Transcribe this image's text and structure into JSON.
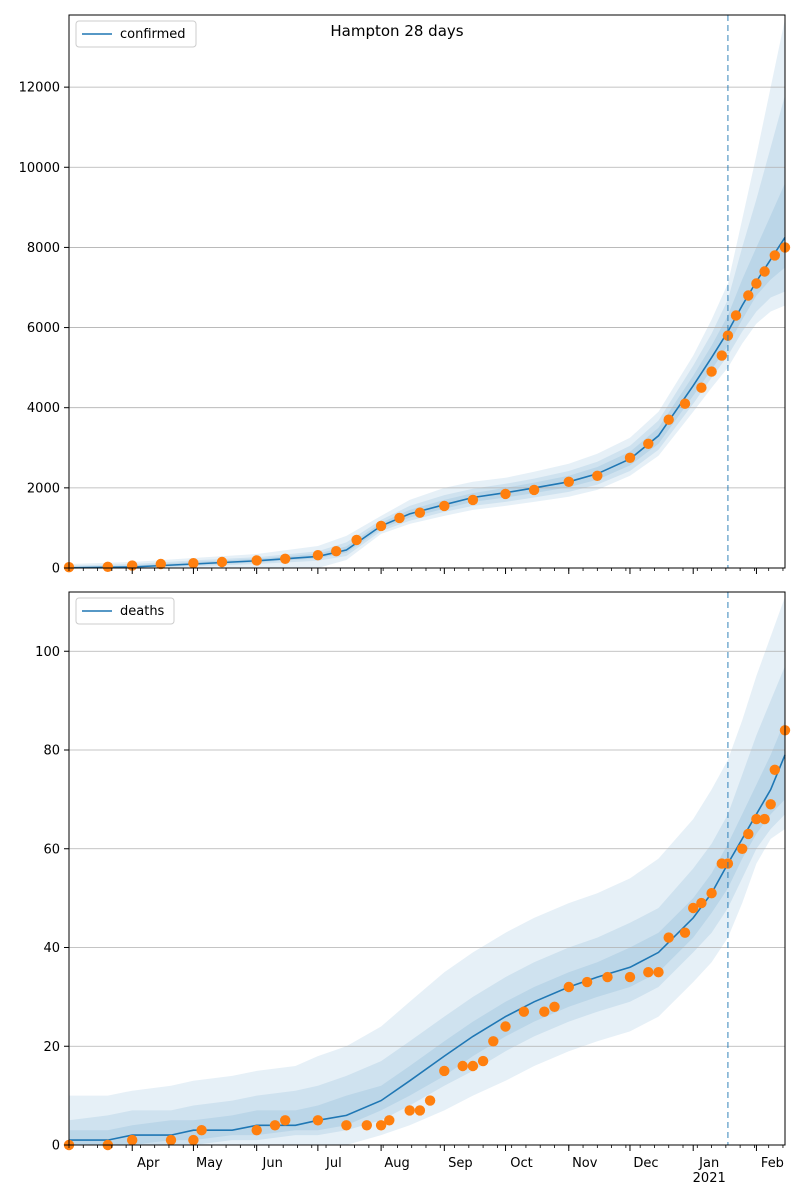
{
  "title": "Hampton 28 days",
  "colors": {
    "series": "#1f77b4",
    "observed": "#ff7f0e",
    "band": "#1f77b4",
    "grid": "#b0b0b0",
    "vline": "#1f77b4"
  },
  "x_axis": {
    "start": "2020-03-01",
    "end": "2021-02-15",
    "month_ticks": [
      {
        "date": "2020-04-01",
        "label": "Apr"
      },
      {
        "date": "2020-05-01",
        "label": "May"
      },
      {
        "date": "2020-06-01",
        "label": "Jun"
      },
      {
        "date": "2020-07-01",
        "label": "Jul"
      },
      {
        "date": "2020-08-01",
        "label": "Aug"
      },
      {
        "date": "2020-09-01",
        "label": "Sep"
      },
      {
        "date": "2020-10-01",
        "label": "Oct"
      },
      {
        "date": "2020-11-01",
        "label": "Nov"
      },
      {
        "date": "2020-12-01",
        "label": "Dec"
      },
      {
        "date": "2021-01-01",
        "label": "Jan"
      },
      {
        "date": "2021-02-01",
        "label": "Feb"
      }
    ],
    "year_label": {
      "date": "2021-01-01",
      "label": "2021"
    },
    "forecast_start": "2021-01-18"
  },
  "chart_data": [
    {
      "type": "line",
      "legend": "confirmed",
      "legend_position": "upper-left",
      "ylim": [
        0,
        13800
      ],
      "yticks": [
        0,
        2000,
        4000,
        6000,
        8000,
        10000,
        12000
      ],
      "grid": "y",
      "model": {
        "x": [
          "2020-03-01",
          "2020-04-01",
          "2020-05-01",
          "2020-06-01",
          "2020-07-01",
          "2020-07-15",
          "2020-08-01",
          "2020-08-15",
          "2020-09-01",
          "2020-09-15",
          "2020-10-01",
          "2020-10-15",
          "2020-11-01",
          "2020-11-15",
          "2020-12-01",
          "2020-12-15",
          "2021-01-01",
          "2021-01-10",
          "2021-01-18",
          "2021-01-25",
          "2021-02-01",
          "2021-02-08",
          "2021-02-15"
        ],
        "y": [
          5,
          25,
          100,
          180,
          290,
          450,
          1050,
          1350,
          1580,
          1760,
          1880,
          2000,
          2150,
          2350,
          2720,
          3300,
          4550,
          5250,
          5900,
          6550,
          7150,
          7700,
          8250
        ]
      },
      "bands": [
        {
          "lower": [
            0,
            0,
            0,
            0,
            0,
            200,
            850,
            1100,
            1300,
            1450,
            1550,
            1650,
            1780,
            1950,
            2300,
            2800,
            3900,
            4500,
            5000,
            5600,
            6100,
            6400,
            6550
          ],
          "upper": [
            100,
            150,
            250,
            350,
            550,
            800,
            1300,
            1700,
            2000,
            2150,
            2250,
            2400,
            2600,
            2850,
            3250,
            3900,
            5300,
            6200,
            7100,
            8700,
            10300,
            12000,
            13700
          ]
        },
        {
          "lower": [
            0,
            0,
            40,
            100,
            180,
            300,
            920,
            1180,
            1400,
            1550,
            1650,
            1760,
            1900,
            2080,
            2420,
            2950,
            4100,
            4750,
            5300,
            5900,
            6400,
            6750,
            6900
          ],
          "upper": [
            60,
            100,
            190,
            270,
            420,
            640,
            1200,
            1550,
            1820,
            1980,
            2100,
            2230,
            2420,
            2650,
            3050,
            3680,
            5050,
            5850,
            6700,
            8000,
            9200,
            10500,
            11800
          ]
        },
        {
          "lower": [
            0,
            10,
            70,
            140,
            240,
            380,
            980,
            1260,
            1480,
            1650,
            1760,
            1870,
            2020,
            2200,
            2560,
            3100,
            4300,
            4950,
            5550,
            6200,
            6800,
            7200,
            7500
          ],
          "upper": [
            30,
            60,
            150,
            230,
            360,
            540,
            1130,
            1450,
            1700,
            1870,
            2000,
            2130,
            2300,
            2520,
            2900,
            3500,
            4800,
            5550,
            6300,
            7200,
            8000,
            8800,
            9600
          ]
        }
      ],
      "observed": {
        "x": [
          "2020-03-01",
          "2020-03-20",
          "2020-04-01",
          "2020-04-15",
          "2020-05-01",
          "2020-05-15",
          "2020-06-01",
          "2020-06-15",
          "2020-07-01",
          "2020-07-10",
          "2020-07-20",
          "2020-08-01",
          "2020-08-10",
          "2020-08-20",
          "2020-09-01",
          "2020-09-15",
          "2020-10-01",
          "2020-10-15",
          "2020-11-01",
          "2020-11-15",
          "2020-12-01",
          "2020-12-10",
          "2020-12-20",
          "2020-12-28",
          "2021-01-05",
          "2021-01-10",
          "2021-01-15",
          "2021-01-18",
          "2021-01-22",
          "2021-01-28",
          "2021-02-01",
          "2021-02-05",
          "2021-02-10",
          "2021-02-15"
        ],
        "y": [
          20,
          30,
          60,
          100,
          120,
          150,
          190,
          230,
          320,
          420,
          700,
          1050,
          1250,
          1380,
          1550,
          1700,
          1850,
          1950,
          2150,
          2300,
          2750,
          3100,
          3700,
          4100,
          4500,
          4900,
          5300,
          5800,
          6300,
          6800,
          7100,
          7400,
          7800,
          8000
        ]
      }
    },
    {
      "type": "line",
      "legend": "deaths",
      "legend_position": "upper-left",
      "ylim": [
        0,
        112
      ],
      "yticks": [
        0,
        20,
        40,
        60,
        80,
        100
      ],
      "grid": "y",
      "model": {
        "x": [
          "2020-03-01",
          "2020-03-20",
          "2020-04-01",
          "2020-04-20",
          "2020-05-01",
          "2020-05-20",
          "2020-06-01",
          "2020-06-20",
          "2020-07-01",
          "2020-07-15",
          "2020-08-01",
          "2020-08-15",
          "2020-09-01",
          "2020-09-15",
          "2020-10-01",
          "2020-10-15",
          "2020-11-01",
          "2020-11-15",
          "2020-12-01",
          "2020-12-15",
          "2021-01-01",
          "2021-01-10",
          "2021-01-18",
          "2021-01-25",
          "2021-02-01",
          "2021-02-08",
          "2021-02-15"
        ],
        "y": [
          1,
          1,
          2,
          2,
          3,
          3,
          4,
          4,
          5,
          6,
          9,
          13,
          18,
          22,
          26,
          29,
          32,
          34,
          36,
          39,
          46,
          51,
          57,
          62,
          67,
          72,
          79
        ]
      },
      "bands": [
        {
          "lower": [
            0,
            0,
            0,
            0,
            0,
            0,
            0,
            0,
            0,
            0,
            2,
            4,
            7,
            10,
            13,
            16,
            19,
            21,
            23,
            26,
            33,
            37,
            42,
            49,
            57,
            62,
            64
          ],
          "upper": [
            10,
            10,
            11,
            12,
            13,
            14,
            15,
            16,
            18,
            20,
            24,
            29,
            35,
            39,
            43,
            46,
            49,
            51,
            54,
            58,
            66,
            72,
            78,
            86,
            95,
            103,
            111
          ]
        },
        {
          "lower": [
            0,
            0,
            0,
            0,
            0,
            1,
            1,
            2,
            2,
            3,
            5,
            8,
            12,
            15,
            19,
            22,
            25,
            27,
            29,
            32,
            39,
            43,
            48,
            54,
            60,
            64,
            67
          ],
          "upper": [
            5,
            6,
            7,
            7,
            8,
            9,
            10,
            11,
            12,
            14,
            17,
            21,
            26,
            30,
            34,
            37,
            40,
            42,
            45,
            48,
            56,
            61,
            67,
            75,
            83,
            90,
            97
          ]
        },
        {
          "lower": [
            0,
            0,
            0,
            1,
            1,
            2,
            2,
            3,
            3,
            4,
            7,
            10,
            14,
            18,
            22,
            25,
            28,
            30,
            32,
            35,
            42,
            47,
            52,
            58,
            63,
            67,
            70
          ],
          "upper": [
            3,
            3,
            4,
            5,
            5,
            6,
            7,
            7,
            8,
            10,
            12,
            16,
            21,
            25,
            29,
            32,
            35,
            37,
            40,
            43,
            50,
            55,
            61,
            67,
            73,
            79,
            86
          ]
        }
      ],
      "observed": {
        "x": [
          "2020-03-01",
          "2020-03-20",
          "2020-04-01",
          "2020-04-20",
          "2020-05-01",
          "2020-05-05",
          "2020-06-01",
          "2020-06-10",
          "2020-06-15",
          "2020-07-01",
          "2020-07-15",
          "2020-07-25",
          "2020-08-01",
          "2020-08-05",
          "2020-08-15",
          "2020-08-20",
          "2020-08-25",
          "2020-09-01",
          "2020-09-10",
          "2020-09-15",
          "2020-09-20",
          "2020-09-25",
          "2020-10-01",
          "2020-10-10",
          "2020-10-20",
          "2020-10-25",
          "2020-11-01",
          "2020-11-10",
          "2020-11-20",
          "2020-12-01",
          "2020-12-10",
          "2020-12-15",
          "2020-12-20",
          "2020-12-28",
          "2021-01-01",
          "2021-01-05",
          "2021-01-10",
          "2021-01-15",
          "2021-01-18",
          "2021-01-25",
          "2021-01-28",
          "2021-02-01",
          "2021-02-05",
          "2021-02-08",
          "2021-02-10",
          "2021-02-15"
        ],
        "y": [
          0,
          0,
          1,
          1,
          1,
          3,
          3,
          4,
          5,
          5,
          4,
          4,
          4,
          5,
          7,
          7,
          9,
          15,
          16,
          16,
          17,
          21,
          24,
          27,
          27,
          28,
          32,
          33,
          34,
          34,
          35,
          35,
          42,
          43,
          48,
          49,
          51,
          57,
          57,
          60,
          63,
          66,
          66,
          69,
          76,
          84
        ]
      }
    }
  ]
}
